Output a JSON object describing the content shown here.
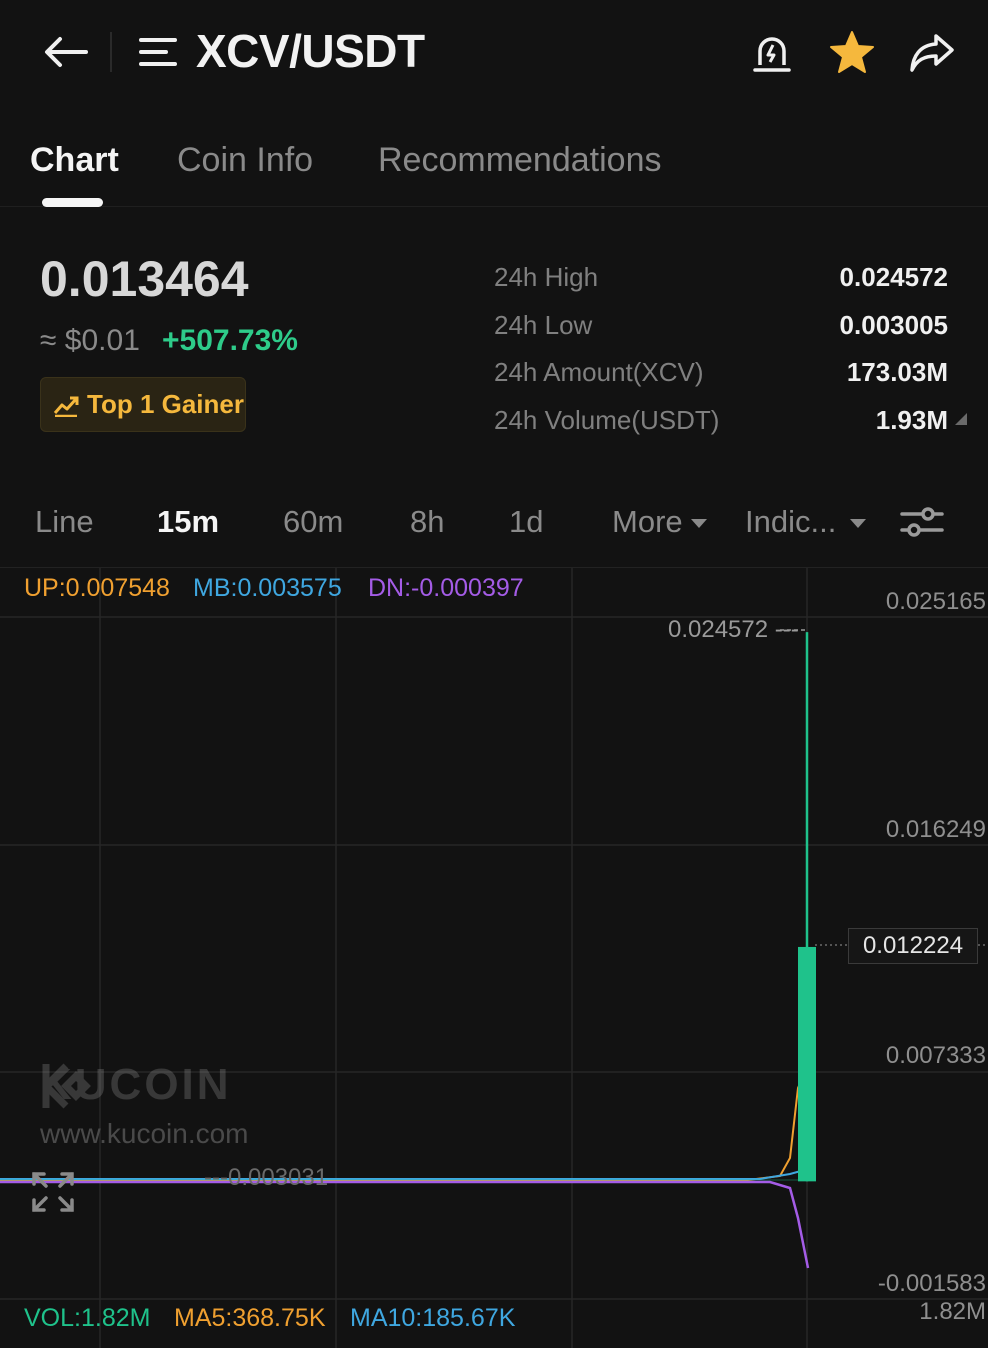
{
  "header": {
    "pair": "XCV/USDT",
    "back_icon": "back-arrow-icon",
    "menu_icon": "menu-icon",
    "alert_icon": "price-alert-icon",
    "favorite_icon": "star-icon",
    "share_icon": "share-icon",
    "favorite_color": "#f5b83d"
  },
  "tabs": [
    {
      "label": "Chart",
      "active": true
    },
    {
      "label": "Coin Info",
      "active": false
    },
    {
      "label": "Recommendations",
      "active": false
    }
  ],
  "price": {
    "last": "0.013464",
    "usd": "≈ $0.01",
    "change": "+507.73%",
    "badge": "Top 1 Gainer",
    "change_color": "#2ecc8a"
  },
  "stats": [
    {
      "label": "24h High",
      "value": "0.024572"
    },
    {
      "label": "24h Low",
      "value": "0.003005"
    },
    {
      "label": "24h Amount(XCV)",
      "value": "173.03M"
    },
    {
      "label": "24h Volume(USDT)",
      "value": "1.93M"
    }
  ],
  "intervals": {
    "line": "Line",
    "m15": "15m",
    "m60": "60m",
    "h8": "8h",
    "d1": "1d",
    "more": "More",
    "indicators": "Indic..."
  },
  "indicators": {
    "up": "UP:0.007548",
    "mb": "MB:0.003575",
    "dn": "DN:-0.000397",
    "up_color": "#f0a030",
    "mb_color": "#3fa7e0",
    "dn_color": "#a45ce6"
  },
  "axis": {
    "labels": [
      "0.025165",
      "0.016249",
      "0.007333",
      "-0.001583"
    ],
    "current": "0.012224",
    "high_marker": "0.024572 ---",
    "low_marker": "---0.003031",
    "vol_max": "1.82M"
  },
  "candle": {
    "open": 0.003031,
    "close": 0.012224,
    "high": 0.024572,
    "low": 0.003031,
    "color": "#1fc28b"
  },
  "watermark": {
    "brand": "KUCOIN",
    "url": "www.kucoin.com"
  },
  "volume": {
    "vol": "VOL:1.82M",
    "ma5": "MA5:368.75K",
    "ma10": "MA10:185.67K",
    "vol_color": "#1fc28b",
    "ma5_color": "#f0a030",
    "ma10_color": "#3fa7e0"
  }
}
